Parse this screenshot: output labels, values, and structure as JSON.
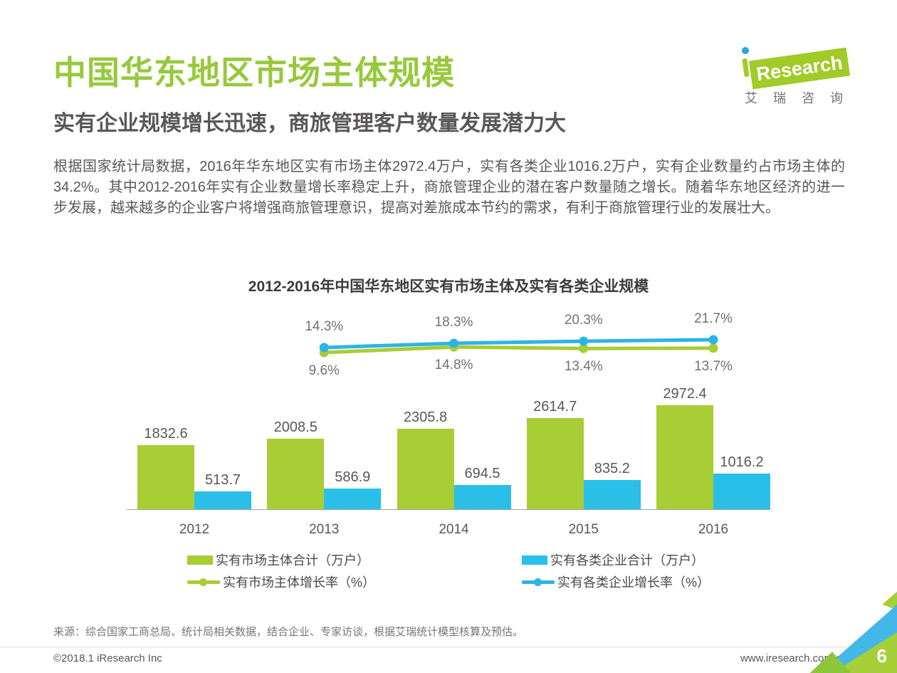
{
  "header": {
    "title": "中国华东地区市场主体规模",
    "subtitle": "实有企业规模增长迅速，商旅管理客户数量发展潜力大",
    "body": "根据国家统计局数据，2016年华东地区实有市场主体2972.4万户，实有各类企业1016.2万户，实有企业数量约占市场主体的34.2%。其中2012-2016年实有企业数量增长率稳定上升，商旅管理企业的潜在客户数量随之增长。随着华东地区经济的进一步发展，越来越多的企业客户将增强商旅管理意识，提高对差旅成本节约的需求，有利于商旅管理行业的发展壮大。"
  },
  "logo": {
    "brand_i": "i",
    "brand": "Research",
    "brand_cn": "艾瑞咨询"
  },
  "colors": {
    "title_green": "#97c93c",
    "bar_green": "#a8cd35",
    "bar_blue": "#29bfe9",
    "line_green": "#a8cd35",
    "line_blue": "#2cb4e5",
    "text_dark": "#3e3a39",
    "text_gray": "#595757",
    "corner_blue": "#44b7e9",
    "corner_green": "#a5ce39"
  },
  "chart_data": {
    "type": "bar",
    "title": "2012-2016年中国华东地区实有市场主体及实有各类企业规模",
    "categories": [
      "2012",
      "2013",
      "2014",
      "2015",
      "2016"
    ],
    "categories_lines": [
      "2013",
      "2014",
      "2015",
      "2016"
    ],
    "series": [
      {
        "name": "实有市场主体合计（万户）",
        "type": "bar",
        "color": "#a8cd35",
        "values": [
          1832.6,
          2008.5,
          2305.8,
          2614.7,
          2972.4
        ]
      },
      {
        "name": "实有各类企业合计（万户）",
        "type": "bar",
        "color": "#29bfe9",
        "values": [
          513.7,
          586.9,
          694.5,
          835.2,
          1016.2
        ]
      },
      {
        "name": "实有市场主体增长率（%）",
        "type": "line",
        "color": "#a8cd35",
        "label_position": "below",
        "values": [
          9.6,
          14.8,
          13.4,
          13.7
        ]
      },
      {
        "name": "实有各类企业增长率（%）",
        "type": "line",
        "color": "#2cb4e5",
        "label_position": "above",
        "values": [
          14.3,
          18.3,
          20.3,
          21.7
        ]
      }
    ],
    "xlabel": "",
    "ylabel": "",
    "value_labels_shown": true,
    "axes_hidden_except_baseline": true,
    "legend_position": "bottom"
  },
  "source_note": "来源：综合国家工商总局、统计局相关数据，结合企业、专家访谈，根据艾瑞统计模型核算及预估。",
  "footer": {
    "copyright": "©2018.1 iResearch Inc",
    "website": "www.iresearch.com.cn",
    "page_number": "6"
  }
}
